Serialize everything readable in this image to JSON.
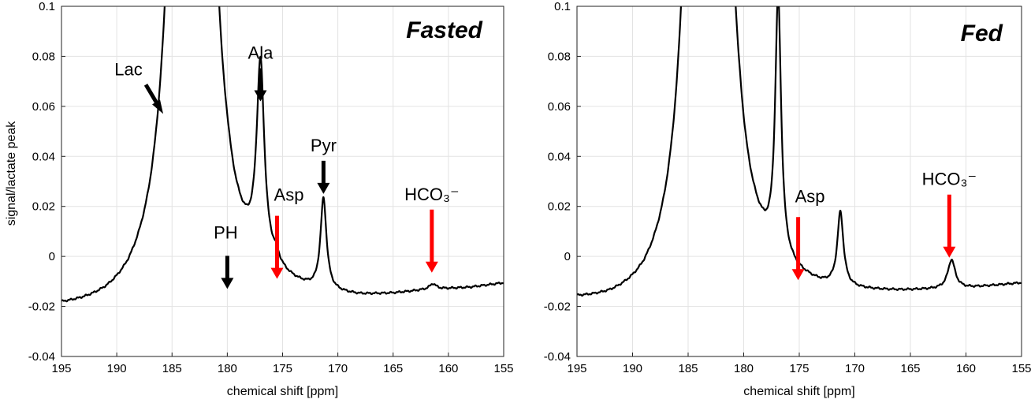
{
  "chart_data": [
    {
      "type": "line",
      "title": "Fasted",
      "xlabel": "chemical shift [ppm]",
      "ylabel": "signal/lactate peak",
      "xlim": [
        195,
        155
      ],
      "ylim": [
        -0.04,
        0.1
      ],
      "xticks": [
        195,
        190,
        185,
        180,
        175,
        170,
        165,
        160,
        155
      ],
      "yticks": [
        -0.04,
        -0.02,
        0,
        0.02,
        0.04,
        0.06,
        0.08,
        0.1
      ],
      "xtick_labels": [
        "195",
        "190",
        "185",
        "180",
        "175",
        "170",
        "165",
        "160",
        "155"
      ],
      "ytick_labels": [
        "-0.04",
        "-0.02",
        "0",
        "0.02",
        "0.04",
        "0.06",
        "0.08",
        "0.1"
      ],
      "grid": true,
      "baseline": [
        [
          195,
          -0.0235
        ],
        [
          193,
          -0.024
        ],
        [
          191,
          -0.0243
        ],
        [
          189,
          -0.0238
        ],
        [
          187,
          -0.0215
        ],
        [
          186,
          -0.019
        ],
        [
          180,
          -0.019
        ],
        [
          176,
          -0.0175
        ],
        [
          172,
          -0.019
        ],
        [
          168,
          -0.0185
        ],
        [
          165,
          -0.017
        ],
        [
          162,
          -0.015
        ],
        [
          158,
          -0.0135
        ],
        [
          155,
          -0.0115
        ]
      ],
      "peaks": [
        {
          "ppm": 183.2,
          "amplitude": 2.0,
          "width": 0.62
        },
        {
          "ppm": 180.0,
          "amplitude": 0.002,
          "width": 0.3
        },
        {
          "ppm": 177.0,
          "amplitude": 0.0775,
          "width": 0.42
        },
        {
          "ppm": 175.6,
          "amplitude": 0.0035,
          "width": 0.35
        },
        {
          "ppm": 171.3,
          "amplitude": 0.0365,
          "width": 0.33
        },
        {
          "ppm": 161.4,
          "amplitude": 0.0022,
          "width": 0.35
        }
      ],
      "annotations": [
        {
          "text": "Lac",
          "ppm": 185.8,
          "value": 0.057,
          "color": "#000000",
          "arrow": "diagonal"
        },
        {
          "text": "Ala",
          "ppm": 177.0,
          "value": 0.062,
          "color": "#000000",
          "arrow": "down"
        },
        {
          "text": "PH",
          "ppm": 180.0,
          "value": -0.013,
          "color": "#000000",
          "arrow": "down"
        },
        {
          "text": "Asp",
          "ppm": 175.5,
          "value": -0.009,
          "color": "#ff0000",
          "arrow": "down"
        },
        {
          "text": "Pyr",
          "ppm": 171.3,
          "value": 0.025,
          "color": "#000000",
          "arrow": "down"
        },
        {
          "text": "HCO₃⁻",
          "ppm": 161.5,
          "value": -0.0065,
          "color": "#ff0000",
          "arrow": "down"
        }
      ]
    },
    {
      "type": "line",
      "title": "Fed",
      "xlabel": "chemical shift [ppm]",
      "ylabel": "",
      "xlim": [
        195,
        155
      ],
      "ylim": [
        -0.04,
        0.1
      ],
      "xticks": [
        195,
        190,
        185,
        180,
        175,
        170,
        165,
        160,
        155
      ],
      "yticks": [
        -0.04,
        -0.02,
        0,
        0.02,
        0.04,
        0.06,
        0.08,
        0.1
      ],
      "xtick_labels": [
        "195",
        "190",
        "185",
        "180",
        "175",
        "170",
        "165",
        "160",
        "155"
      ],
      "ytick_labels": [
        "-0.04",
        "-0.02",
        "0",
        "0.02",
        "0.04",
        "0.06",
        "0.08",
        "0.1"
      ],
      "grid": true,
      "baseline": [
        [
          195,
          -0.021
        ],
        [
          192,
          -0.023
        ],
        [
          189,
          -0.024
        ],
        [
          187,
          -0.023
        ],
        [
          185,
          -0.0205
        ],
        [
          181,
          -0.0185
        ],
        [
          179,
          -0.0175
        ],
        [
          176,
          -0.017
        ],
        [
          173,
          -0.0175
        ],
        [
          170,
          -0.017
        ],
        [
          166,
          -0.016
        ],
        [
          163,
          -0.015
        ],
        [
          160,
          -0.014
        ],
        [
          155,
          -0.0115
        ]
      ],
      "peaks": [
        {
          "ppm": 183.2,
          "amplitude": 2.0,
          "width": 0.62
        },
        {
          "ppm": 180.3,
          "amplitude": 0.0015,
          "width": 0.3
        },
        {
          "ppm": 176.9,
          "amplitude": 0.103,
          "width": 0.32
        },
        {
          "ppm": 171.3,
          "amplitude": 0.0295,
          "width": 0.33
        },
        {
          "ppm": 161.3,
          "amplitude": 0.0115,
          "width": 0.4
        }
      ],
      "annotations": [
        {
          "text": "Asp",
          "ppm": 175.1,
          "value": -0.0095,
          "color": "#ff0000",
          "arrow": "down"
        },
        {
          "text": "HCO₃⁻",
          "ppm": 161.5,
          "value": -0.0005,
          "color": "#ff0000",
          "arrow": "down"
        }
      ]
    }
  ]
}
